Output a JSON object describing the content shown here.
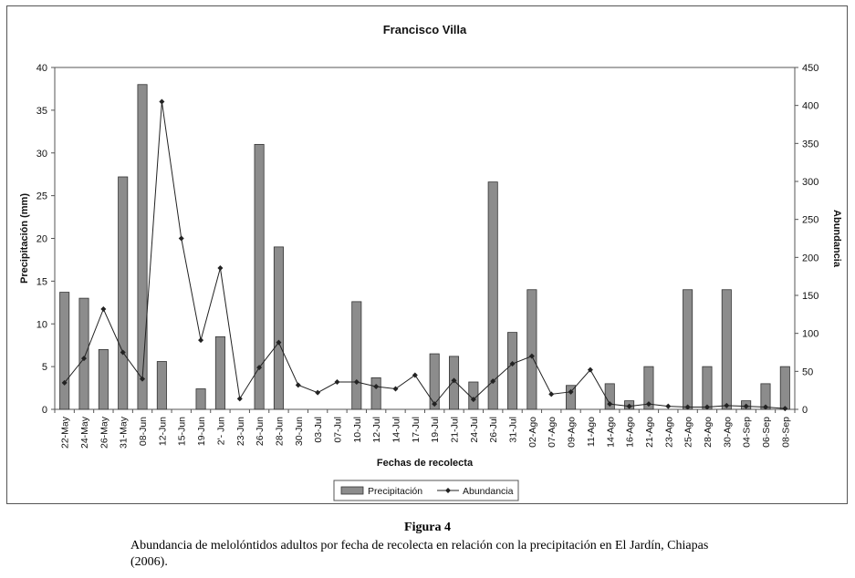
{
  "chart_data": {
    "type": "bar+line",
    "title": "Francisco Villa",
    "xlabel": "Fechas de recolecta",
    "ylabel_left": "Precipitación (mm)",
    "ylabel_right": "Abundancia",
    "ylim_left": [
      0,
      40
    ],
    "yticks_left": [
      0,
      5,
      10,
      15,
      20,
      25,
      30,
      35,
      40
    ],
    "ylim_right": [
      0,
      450
    ],
    "yticks_right": [
      0,
      50,
      100,
      150,
      200,
      250,
      300,
      350,
      400,
      450
    ],
    "categories": [
      "22-May",
      "24-May",
      "26-May",
      "31-May",
      "08-Jun",
      "12-Jun",
      "15-Jun",
      "19-Jun",
      "2'- Jun",
      "23-Jun",
      "26-Jun",
      "28-Jun",
      "30-Jun",
      "03-Jul",
      "07-Jul",
      "10-Jul",
      "12-Jul",
      "14-Jul",
      "17-Jul",
      "19-Jul",
      "21-Jul",
      "24-Jul",
      "26-Jul",
      "31-Jul",
      "02-Ago",
      "07-Ago",
      "09-Ago",
      "11-Ago",
      "14-Ago",
      "16-Ago",
      "21-Ago",
      "23-Ago",
      "25-Ago",
      "28-Ago",
      "30-Ago",
      "04-Sep",
      "06-Sep",
      "08-Sep"
    ],
    "series": [
      {
        "name": "Precipitación",
        "type": "bar",
        "axis": "left",
        "color": "#8c8c8c",
        "values": [
          13.7,
          13,
          7,
          27.2,
          38,
          5.6,
          0,
          2.4,
          8.5,
          0,
          31,
          19,
          0,
          0,
          0,
          12.6,
          3.7,
          0,
          0,
          6.5,
          6.2,
          3.2,
          26.6,
          9,
          14,
          0,
          2.8,
          0,
          3,
          1,
          5,
          0,
          14,
          5,
          14,
          1,
          3,
          5
        ]
      },
      {
        "name": "Abundancia",
        "type": "line",
        "axis": "right",
        "color": "#222222",
        "values": [
          35,
          67,
          132,
          75,
          40,
          405,
          225,
          91,
          186,
          14,
          55,
          88,
          32,
          22,
          36,
          36,
          30,
          27,
          45,
          7,
          38,
          13,
          37,
          60,
          70,
          20,
          23,
          52,
          7,
          4,
          7,
          4,
          3,
          3,
          5,
          4,
          3,
          1
        ]
      }
    ],
    "legend": [
      "Precipitación",
      "Abundancia"
    ],
    "legend_position": "bottom"
  },
  "caption": {
    "label": "Figura 4",
    "text": "Abundancia de melolóntidos adultos por fecha de recolecta en relación con la precipitación en El Jardín, Chiapas (2006)."
  }
}
